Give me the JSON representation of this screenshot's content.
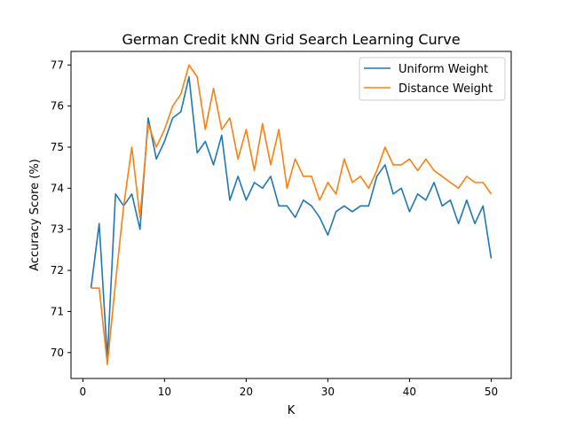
{
  "chart_data": {
    "type": "line",
    "title": "German Credit kNN Grid Search Learning Curve",
    "xlabel": "K",
    "ylabel": "Accuracy Score (%)",
    "xlim": [
      -1.45,
      52.45
    ],
    "ylim": [
      69.37,
      77.33
    ],
    "xticks": [
      0,
      10,
      20,
      30,
      40,
      50
    ],
    "yticks": [
      70,
      71,
      72,
      73,
      74,
      75,
      76,
      77
    ],
    "grid": false,
    "legend_position": "top-right",
    "x": [
      1,
      2,
      3,
      4,
      5,
      6,
      7,
      8,
      9,
      10,
      11,
      12,
      13,
      14,
      15,
      16,
      17,
      18,
      19,
      20,
      21,
      22,
      23,
      24,
      25,
      26,
      27,
      28,
      29,
      30,
      31,
      32,
      33,
      34,
      35,
      36,
      37,
      38,
      39,
      40,
      41,
      42,
      43,
      44,
      45,
      46,
      47,
      48,
      49,
      50
    ],
    "series": [
      {
        "name": "Uniform Weight",
        "color": "#1f77b4",
        "values": [
          71.57,
          73.14,
          69.86,
          73.86,
          73.57,
          73.86,
          73.0,
          75.71,
          74.71,
          75.14,
          75.71,
          75.86,
          76.71,
          74.86,
          75.14,
          74.57,
          75.29,
          73.71,
          74.29,
          73.71,
          74.14,
          74.0,
          74.29,
          73.57,
          73.57,
          73.29,
          73.71,
          73.57,
          73.29,
          72.86,
          73.43,
          73.57,
          73.43,
          73.57,
          73.57,
          74.29,
          74.57,
          73.86,
          74.0,
          73.43,
          73.86,
          73.71,
          74.14,
          73.57,
          73.71,
          73.14,
          73.71,
          73.14,
          73.57,
          72.29
        ]
      },
      {
        "name": "Distance Weight",
        "color": "#ff7f0e",
        "values": [
          71.57,
          71.57,
          69.71,
          71.71,
          73.57,
          75.0,
          73.29,
          75.57,
          75.0,
          75.43,
          76.0,
          76.29,
          77.0,
          76.71,
          75.43,
          76.43,
          75.43,
          75.71,
          74.71,
          75.43,
          74.43,
          75.57,
          74.57,
          75.43,
          74.0,
          74.71,
          74.29,
          74.29,
          73.71,
          74.14,
          73.86,
          74.71,
          74.14,
          74.29,
          74.0,
          74.43,
          75.0,
          74.57,
          74.57,
          74.71,
          74.43,
          74.71,
          74.43,
          74.29,
          74.14,
          74.0,
          74.29,
          74.14,
          74.14,
          73.86
        ]
      }
    ]
  }
}
